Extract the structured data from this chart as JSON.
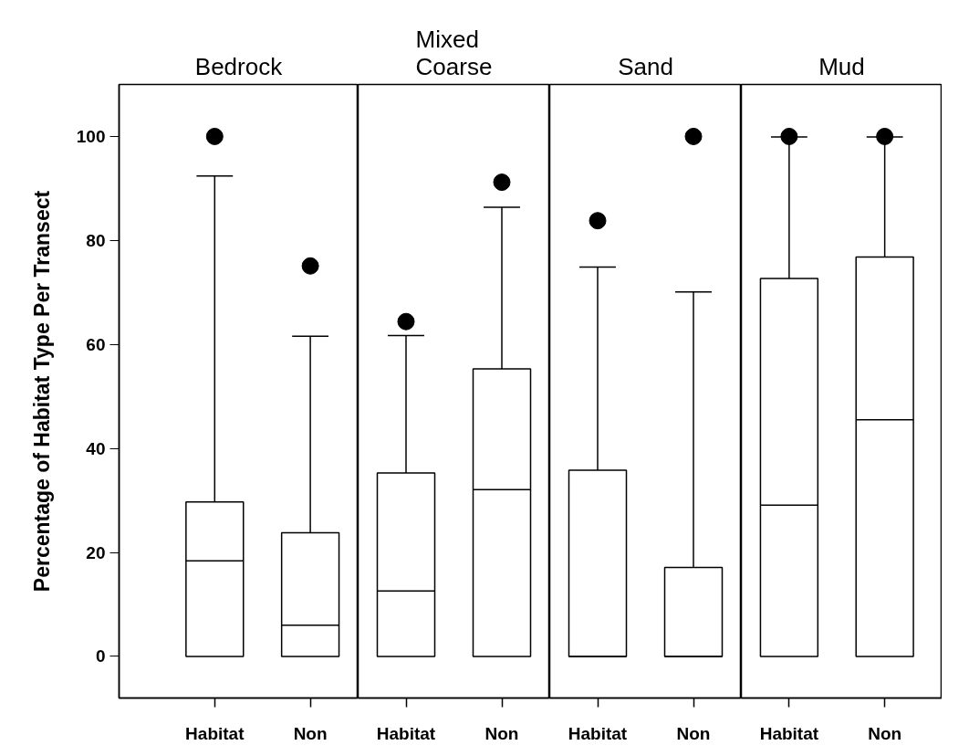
{
  "chart_data": [
    {
      "type": "box",
      "title": "Bedrock",
      "ylabel": "Percentage of Habitat Type Per Transect",
      "categories": [
        "Habitat",
        "Non"
      ],
      "ylim": [
        -8,
        110
      ],
      "yticks": [
        0,
        20,
        40,
        60,
        80,
        100
      ],
      "grid": false,
      "marker": "circle",
      "boxes": [
        {
          "low": 0,
          "q1": 0,
          "median": 18.4,
          "q3": 29.7,
          "high": 92.4,
          "outliers": [
            100
          ]
        },
        {
          "low": 0,
          "q1": 0,
          "median": 6.0,
          "q3": 23.8,
          "high": 61.6,
          "outliers": [
            75.1
          ]
        }
      ]
    },
    {
      "type": "box",
      "title": "Mixed\nCoarse",
      "categories": [
        "Habitat",
        "Non"
      ],
      "ylim": [
        -8,
        110
      ],
      "yticks": [
        0,
        20,
        40,
        60,
        80,
        100
      ],
      "grid": false,
      "marker": "circle",
      "tick_labels": "x",
      "boxes": [
        {
          "low": 0,
          "q1": 0,
          "median": 12.6,
          "q3": 35.3,
          "high": 61.7,
          "outliers": [
            64.4
          ]
        },
        {
          "low": 0,
          "q1": 0,
          "median": 32.1,
          "q3": 55.3,
          "high": 86.4,
          "outliers": [
            91.2
          ]
        }
      ]
    },
    {
      "type": "box",
      "title": "Sand",
      "categories": [
        "Habitat",
        "Non"
      ],
      "ylim": [
        -8,
        110
      ],
      "yticks": [
        0,
        20,
        40,
        60,
        80,
        100
      ],
      "grid": false,
      "marker": "circle",
      "tick_labels": "x",
      "boxes": [
        {
          "low": 0,
          "q1": 0,
          "median": 0,
          "q3": 35.8,
          "high": 74.9,
          "outliers": [
            83.8
          ]
        },
        {
          "low": 0,
          "q1": 0,
          "median": 0,
          "q3": 17.1,
          "high": 70.1,
          "outliers": [
            100
          ]
        }
      ]
    },
    {
      "type": "box",
      "title": "Mud",
      "categories": [
        "Habitat",
        "Non"
      ],
      "ylim": [
        -8,
        110
      ],
      "yticks": [
        0,
        20,
        40,
        60,
        80,
        100
      ],
      "grid": false,
      "marker": "circle",
      "tick_labels": "x",
      "boxes": [
        {
          "low": 0,
          "q1": 0,
          "median": 29.1,
          "q3": 72.7,
          "high": 99.9,
          "outliers": [
            100
          ]
        },
        {
          "low": 0,
          "q1": 0,
          "median": 45.5,
          "q3": 76.8,
          "high": 99.9,
          "outliers": [
            100
          ]
        }
      ]
    }
  ]
}
